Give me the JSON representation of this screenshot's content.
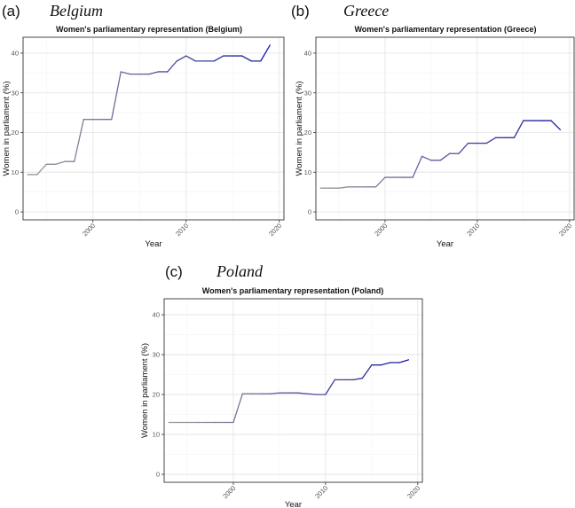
{
  "chart_data": [
    {
      "type": "line",
      "panel": "(a)",
      "name": "Belgium",
      "title": "Women's parliamentary representation (Belgium)",
      "xlabel": "Year",
      "ylabel": "Women in parliament (%)",
      "xlim": [
        1992.5,
        2020.5
      ],
      "ylim": [
        -2,
        44
      ],
      "xticks": [
        2000,
        2010,
        2020
      ],
      "yticks": [
        0,
        10,
        20,
        30,
        40
      ],
      "x": [
        1993,
        1994,
        1995,
        1996,
        1997,
        1998,
        1999,
        2000,
        2001,
        2002,
        2003,
        2004,
        2005,
        2006,
        2007,
        2008,
        2009,
        2010,
        2011,
        2012,
        2013,
        2014,
        2015,
        2016,
        2017,
        2018,
        2019
      ],
      "y": [
        9.4,
        9.4,
        12.0,
        12.0,
        12.7,
        12.7,
        23.3,
        23.3,
        23.3,
        23.3,
        35.3,
        34.7,
        34.7,
        34.7,
        35.3,
        35.3,
        38.0,
        39.3,
        38.0,
        38.0,
        38.0,
        39.3,
        39.3,
        39.3,
        38.0,
        38.0,
        42.0
      ],
      "color_start": "#9a9a9a",
      "color_end": "#1a1aa0"
    },
    {
      "type": "line",
      "panel": "(b)",
      "name": "Greece",
      "title": "Women's parliamentary representation (Greece)",
      "xlabel": "Year",
      "ylabel": "Women in parliament (%)",
      "xlim": [
        1992.5,
        2020.5
      ],
      "ylim": [
        -2,
        44
      ],
      "xticks": [
        2000,
        2010,
        2020
      ],
      "yticks": [
        0,
        10,
        20,
        30,
        40
      ],
      "x": [
        1993,
        1994,
        1995,
        1996,
        1997,
        1998,
        1999,
        2000,
        2001,
        2002,
        2003,
        2004,
        2005,
        2006,
        2007,
        2008,
        2009,
        2010,
        2011,
        2012,
        2013,
        2014,
        2015,
        2016,
        2017,
        2018,
        2019
      ],
      "y": [
        6.0,
        6.0,
        6.0,
        6.3,
        6.3,
        6.3,
        6.3,
        8.7,
        8.7,
        8.7,
        8.7,
        14.0,
        13.0,
        13.0,
        14.7,
        14.7,
        17.3,
        17.3,
        17.3,
        18.7,
        18.7,
        18.7,
        23.0,
        23.0,
        23.0,
        23.0,
        20.7
      ],
      "color_start": "#9a9a9a",
      "color_end": "#1a1aa0"
    },
    {
      "type": "line",
      "panel": "(c)",
      "name": "Poland",
      "title": "Women's parliamentary representation (Poland)",
      "xlabel": "Year",
      "ylabel": "Women in parliament (%)",
      "xlim": [
        1992.5,
        2020.5
      ],
      "ylim": [
        -2,
        44
      ],
      "xticks": [
        2000,
        2010,
        2020
      ],
      "yticks": [
        0,
        10,
        20,
        30,
        40
      ],
      "x": [
        1993,
        1994,
        1995,
        1996,
        1997,
        1998,
        1999,
        2000,
        2001,
        2002,
        2003,
        2004,
        2005,
        2006,
        2007,
        2008,
        2009,
        2010,
        2011,
        2012,
        2013,
        2014,
        2015,
        2016,
        2017,
        2018,
        2019
      ],
      "y": [
        13.0,
        13.0,
        13.0,
        13.0,
        13.0,
        13.0,
        13.0,
        13.0,
        20.2,
        20.2,
        20.2,
        20.2,
        20.4,
        20.4,
        20.4,
        20.2,
        20.0,
        20.0,
        23.7,
        23.7,
        23.7,
        24.1,
        27.4,
        27.4,
        28.0,
        28.0,
        28.7
      ],
      "color_start": "#9a9a9a",
      "color_end": "#1a1aa0"
    }
  ]
}
